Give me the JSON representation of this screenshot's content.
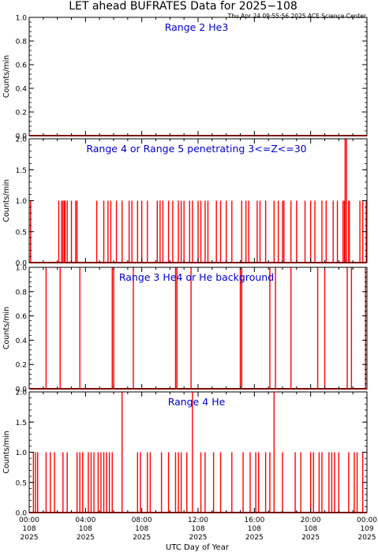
{
  "header": {
    "title": "LET ahead BUFRATES Data for 2025−108",
    "timestamp": "Thu Apr 24 09:55:56 2025 ACE Science Center"
  },
  "colors": {
    "trace": "#ff0000",
    "label": "#0000cc",
    "axis": "#000000"
  },
  "chart_data": [
    {
      "type": "line",
      "title": "Range 2 He3",
      "ylabel": "Counts/min",
      "ylim": [
        0,
        1.0
      ],
      "yticks": [
        "0.0",
        "0.2",
        "0.4",
        "0.6",
        "0.8",
        "1.0"
      ],
      "xlim": [
        0,
        24
      ],
      "spikes": []
    },
    {
      "type": "line",
      "title": "Range 4 or Range 5 penetrating 3<=Z<=30",
      "ylabel": "Counts/min",
      "ylim": [
        0,
        2.0
      ],
      "yticks": [
        "0.0",
        "0.5",
        "1.0",
        "1.5",
        "2.0"
      ],
      "xlim": [
        0,
        24
      ],
      "spikes": [
        {
          "x": 0.1,
          "y": 1
        },
        {
          "x": 2.1,
          "y": 1
        },
        {
          "x": 2.3,
          "y": 1
        },
        {
          "x": 2.4,
          "y": 1
        },
        {
          "x": 2.5,
          "y": 1
        },
        {
          "x": 2.55,
          "y": 1
        },
        {
          "x": 2.7,
          "y": 1
        },
        {
          "x": 3.0,
          "y": 1
        },
        {
          "x": 3.3,
          "y": 1
        },
        {
          "x": 3.4,
          "y": 1
        },
        {
          "x": 4.8,
          "y": 1
        },
        {
          "x": 5.3,
          "y": 1
        },
        {
          "x": 5.6,
          "y": 1
        },
        {
          "x": 5.8,
          "y": 1
        },
        {
          "x": 6.2,
          "y": 1
        },
        {
          "x": 6.6,
          "y": 1
        },
        {
          "x": 7.1,
          "y": 1
        },
        {
          "x": 7.3,
          "y": 1
        },
        {
          "x": 7.7,
          "y": 1
        },
        {
          "x": 8.0,
          "y": 1
        },
        {
          "x": 8.4,
          "y": 1
        },
        {
          "x": 9.1,
          "y": 1
        },
        {
          "x": 9.3,
          "y": 1
        },
        {
          "x": 9.5,
          "y": 1
        },
        {
          "x": 9.9,
          "y": 1
        },
        {
          "x": 10.2,
          "y": 1
        },
        {
          "x": 10.6,
          "y": 1
        },
        {
          "x": 10.8,
          "y": 1
        },
        {
          "x": 11.0,
          "y": 1
        },
        {
          "x": 11.4,
          "y": 1
        },
        {
          "x": 11.6,
          "y": 1
        },
        {
          "x": 12.0,
          "y": 1
        },
        {
          "x": 12.2,
          "y": 1
        },
        {
          "x": 12.5,
          "y": 1
        },
        {
          "x": 12.7,
          "y": 1
        },
        {
          "x": 13.3,
          "y": 1
        },
        {
          "x": 13.6,
          "y": 1
        },
        {
          "x": 14.0,
          "y": 1
        },
        {
          "x": 14.4,
          "y": 1
        },
        {
          "x": 15.1,
          "y": 1
        },
        {
          "x": 15.4,
          "y": 1
        },
        {
          "x": 15.6,
          "y": 1
        },
        {
          "x": 16.2,
          "y": 1
        },
        {
          "x": 16.4,
          "y": 1
        },
        {
          "x": 16.8,
          "y": 1
        },
        {
          "x": 17.4,
          "y": 1
        },
        {
          "x": 17.7,
          "y": 1
        },
        {
          "x": 18.0,
          "y": 1
        },
        {
          "x": 18.1,
          "y": 1
        },
        {
          "x": 18.6,
          "y": 1
        },
        {
          "x": 19.0,
          "y": 1
        },
        {
          "x": 19.6,
          "y": 1
        },
        {
          "x": 20.0,
          "y": 1
        },
        {
          "x": 20.3,
          "y": 1
        },
        {
          "x": 20.8,
          "y": 1
        },
        {
          "x": 21.1,
          "y": 1
        },
        {
          "x": 21.6,
          "y": 1
        },
        {
          "x": 21.9,
          "y": 1
        },
        {
          "x": 22.3,
          "y": 1
        },
        {
          "x": 22.4,
          "y": 1
        },
        {
          "x": 22.45,
          "y": 2
        },
        {
          "x": 22.55,
          "y": 2
        },
        {
          "x": 22.7,
          "y": 1
        },
        {
          "x": 22.75,
          "y": 1
        },
        {
          "x": 23.5,
          "y": 1
        },
        {
          "x": 23.7,
          "y": 1
        },
        {
          "x": 23.95,
          "y": 1
        }
      ]
    },
    {
      "type": "line",
      "title": "Range 3 He4 or He background",
      "ylabel": "Counts/min",
      "ylim": [
        0,
        1.0
      ],
      "yticks": [
        "0.0",
        "0.2",
        "0.4",
        "0.6",
        "0.8",
        "1.0"
      ],
      "xlim": [
        0,
        24
      ],
      "spikes": [
        {
          "x": 1.2,
          "y": 1
        },
        {
          "x": 2.2,
          "y": 1
        },
        {
          "x": 3.6,
          "y": 1
        },
        {
          "x": 5.9,
          "y": 1
        },
        {
          "x": 6.0,
          "y": 1
        },
        {
          "x": 7.4,
          "y": 1
        },
        {
          "x": 10.4,
          "y": 1
        },
        {
          "x": 10.5,
          "y": 1
        },
        {
          "x": 11.5,
          "y": 1
        },
        {
          "x": 15.0,
          "y": 1
        },
        {
          "x": 15.1,
          "y": 1
        },
        {
          "x": 17.1,
          "y": 1
        },
        {
          "x": 17.5,
          "y": 1
        },
        {
          "x": 18.6,
          "y": 1
        },
        {
          "x": 20.5,
          "y": 1
        },
        {
          "x": 21.0,
          "y": 1
        },
        {
          "x": 22.6,
          "y": 1
        },
        {
          "x": 22.9,
          "y": 1
        },
        {
          "x": 23.9,
          "y": 1
        }
      ]
    },
    {
      "type": "line",
      "title": "Range 4 He",
      "ylabel": "Counts/min",
      "ylim": [
        0,
        2.0
      ],
      "yticks": [
        "0.0",
        "0.5",
        "1.0",
        "1.5",
        "2.0"
      ],
      "xlim": [
        0,
        24
      ],
      "xticks": [
        {
          "time": "00:00",
          "doy": "108",
          "year": "2025"
        },
        {
          "time": "04:00",
          "doy": "108",
          "year": "2025"
        },
        {
          "time": "08:00",
          "doy": "108",
          "year": "2025"
        },
        {
          "time": "12:00",
          "doy": "108",
          "year": "2025"
        },
        {
          "time": "16:00",
          "doy": "108",
          "year": "2025"
        },
        {
          "time": "20:00",
          "doy": "108",
          "year": "2025"
        },
        {
          "time": "00:00",
          "doy": "109",
          "year": "2025"
        }
      ],
      "xlabel": "UTC Day of Year",
      "spikes": [
        {
          "x": 0.3,
          "y": 1
        },
        {
          "x": 0.45,
          "y": 1
        },
        {
          "x": 0.6,
          "y": 1
        },
        {
          "x": 1.2,
          "y": 1
        },
        {
          "x": 1.5,
          "y": 1
        },
        {
          "x": 1.8,
          "y": 1
        },
        {
          "x": 2.4,
          "y": 1
        },
        {
          "x": 2.7,
          "y": 1
        },
        {
          "x": 3.4,
          "y": 1
        },
        {
          "x": 3.6,
          "y": 1
        },
        {
          "x": 3.8,
          "y": 1
        },
        {
          "x": 4.2,
          "y": 1
        },
        {
          "x": 4.4,
          "y": 1
        },
        {
          "x": 4.6,
          "y": 1
        },
        {
          "x": 4.9,
          "y": 1
        },
        {
          "x": 5.1,
          "y": 1
        },
        {
          "x": 5.3,
          "y": 1
        },
        {
          "x": 5.5,
          "y": 1
        },
        {
          "x": 5.7,
          "y": 1
        },
        {
          "x": 5.9,
          "y": 1
        },
        {
          "x": 6.6,
          "y": 2
        },
        {
          "x": 7.7,
          "y": 1
        },
        {
          "x": 7.9,
          "y": 1
        },
        {
          "x": 8.4,
          "y": 1
        },
        {
          "x": 8.6,
          "y": 1
        },
        {
          "x": 9.4,
          "y": 1
        },
        {
          "x": 9.9,
          "y": 1
        },
        {
          "x": 10.4,
          "y": 1
        },
        {
          "x": 10.6,
          "y": 1
        },
        {
          "x": 10.8,
          "y": 1
        },
        {
          "x": 11.2,
          "y": 1
        },
        {
          "x": 11.6,
          "y": 2
        },
        {
          "x": 12.2,
          "y": 1
        },
        {
          "x": 12.5,
          "y": 1
        },
        {
          "x": 13.1,
          "y": 1
        },
        {
          "x": 13.6,
          "y": 1
        },
        {
          "x": 14.4,
          "y": 1
        },
        {
          "x": 15.2,
          "y": 1
        },
        {
          "x": 15.7,
          "y": 1
        },
        {
          "x": 16.1,
          "y": 1
        },
        {
          "x": 16.3,
          "y": 1
        },
        {
          "x": 16.8,
          "y": 1
        },
        {
          "x": 17.1,
          "y": 1
        },
        {
          "x": 17.4,
          "y": 2
        },
        {
          "x": 18.0,
          "y": 1
        },
        {
          "x": 18.9,
          "y": 1
        },
        {
          "x": 19.3,
          "y": 1
        },
        {
          "x": 20.0,
          "y": 1
        },
        {
          "x": 20.2,
          "y": 1
        },
        {
          "x": 20.6,
          "y": 1
        },
        {
          "x": 20.8,
          "y": 1
        },
        {
          "x": 21.3,
          "y": 1
        },
        {
          "x": 21.5,
          "y": 1
        },
        {
          "x": 21.7,
          "y": 1
        },
        {
          "x": 22.0,
          "y": 1
        },
        {
          "x": 22.7,
          "y": 1
        },
        {
          "x": 23.1,
          "y": 1
        },
        {
          "x": 23.3,
          "y": 1
        },
        {
          "x": 23.7,
          "y": 1
        }
      ]
    }
  ]
}
